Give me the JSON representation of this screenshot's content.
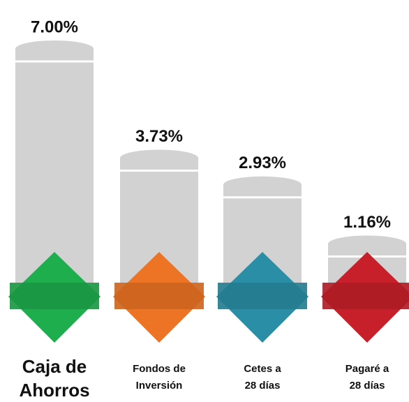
{
  "chart_data": {
    "type": "bar",
    "categories": [
      [
        "Caja de",
        "Ahorros"
      ],
      [
        "Fondos de",
        "Inversión"
      ],
      [
        "Cetes a",
        "28 días"
      ],
      [
        "Pagaré a",
        "28 días"
      ]
    ],
    "values": [
      7.0,
      3.73,
      2.93,
      1.16
    ],
    "value_labels": [
      "7.00%",
      "3.73%",
      "2.93%",
      "1.16%"
    ],
    "colors": [
      "#1fae4e",
      "#ec7424",
      "#2a8fa6",
      "#c8202a"
    ],
    "bar_color": "#d2d2d2"
  }
}
